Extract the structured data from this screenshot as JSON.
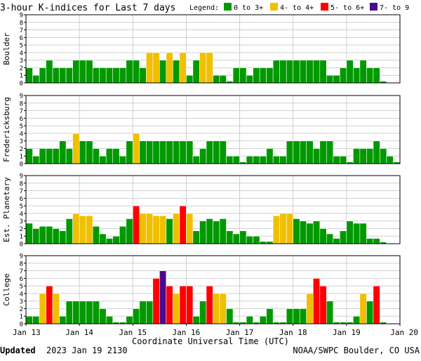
{
  "header": {
    "title": "3-hour K-indices for Last 7 days",
    "legend_label": "Legend:",
    "legend": [
      {
        "label": "0 to 3+",
        "color": "#009900"
      },
      {
        "label": "4- to 4+",
        "color": "#f0c000"
      },
      {
        "label": "5- to 6+",
        "color": "#ff0000"
      },
      {
        "label": "7- to 9",
        "color": "#4b0b8c"
      }
    ]
  },
  "footer": {
    "updated_label": "Updated",
    "updated_value": "2023 Jan 19 2130",
    "source": "NOAA/SWPC Boulder, CO USA"
  },
  "chart_data": {
    "type": "bar",
    "xlabel": "Coordinate Universal Time (UTC)",
    "x_ticks": [
      "Jan 13",
      "Jan 14",
      "Jan 15",
      "Jan 16",
      "Jan 17",
      "Jan 18",
      "Jan 19",
      "Jan 20"
    ],
    "ylim": [
      0,
      9
    ],
    "y_ticks": [
      0,
      1,
      2,
      3,
      4,
      5,
      6,
      7,
      8,
      9
    ],
    "grid": true,
    "legend_placement": "top",
    "bins_per_day": 8,
    "days": 7,
    "panels": [
      {
        "name": "Boulder",
        "values": [
          2,
          1,
          2,
          3,
          2,
          2,
          2,
          3,
          3,
          3,
          2,
          2,
          2,
          2,
          2,
          3,
          3,
          2,
          4,
          4,
          3,
          4,
          3,
          4,
          1,
          3,
          4,
          4,
          1,
          1,
          0,
          2,
          2,
          1,
          2,
          2,
          2,
          3,
          3,
          3,
          3,
          3,
          3,
          3,
          3,
          1,
          1,
          2,
          3,
          2,
          3,
          2,
          2,
          0
        ]
      },
      {
        "name": "Fredericksburg",
        "values": [
          2,
          1,
          2,
          2,
          2,
          3,
          2,
          4,
          3,
          3,
          2,
          1,
          2,
          2,
          1,
          3,
          4,
          3,
          3,
          3,
          3,
          3,
          3,
          3,
          3,
          1,
          2,
          3,
          3,
          3,
          1,
          1,
          0,
          1,
          1,
          1,
          2,
          1,
          1,
          3,
          3,
          3,
          3,
          2,
          3,
          3,
          1,
          1,
          0,
          2,
          2,
          2,
          3,
          2,
          1,
          0
        ]
      },
      {
        "name": "Est. Planetary",
        "values": [
          2.7,
          2.0,
          2.3,
          2.3,
          2.0,
          1.7,
          3.3,
          4.0,
          3.7,
          3.7,
          2.3,
          1.3,
          0.7,
          1.0,
          2.3,
          3.3,
          5.0,
          4.0,
          4.0,
          3.7,
          3.7,
          3.3,
          4.0,
          5.0,
          4.0,
          1.7,
          3.0,
          3.3,
          3.0,
          3.3,
          1.7,
          1.3,
          1.7,
          1.0,
          1.0,
          0.3,
          0.3,
          3.7,
          4.0,
          4.0,
          3.3,
          3.0,
          2.7,
          3.0,
          2.0,
          1.3,
          0.7,
          1.7,
          3.0,
          2.7,
          2.7,
          0.7,
          0.7,
          0
        ]
      },
      {
        "name": "College",
        "values": [
          1,
          1,
          4,
          5,
          4,
          1,
          3,
          3,
          3,
          3,
          3,
          2,
          1,
          0,
          0,
          1,
          2,
          3,
          3,
          6,
          7,
          5,
          4,
          5,
          5,
          1,
          3,
          5,
          4,
          4,
          2,
          0,
          0,
          1,
          0,
          1,
          2,
          0,
          0,
          2,
          2,
          2,
          4,
          6,
          5,
          3,
          0,
          0,
          0,
          1,
          4,
          3,
          5,
          0
        ]
      }
    ]
  }
}
